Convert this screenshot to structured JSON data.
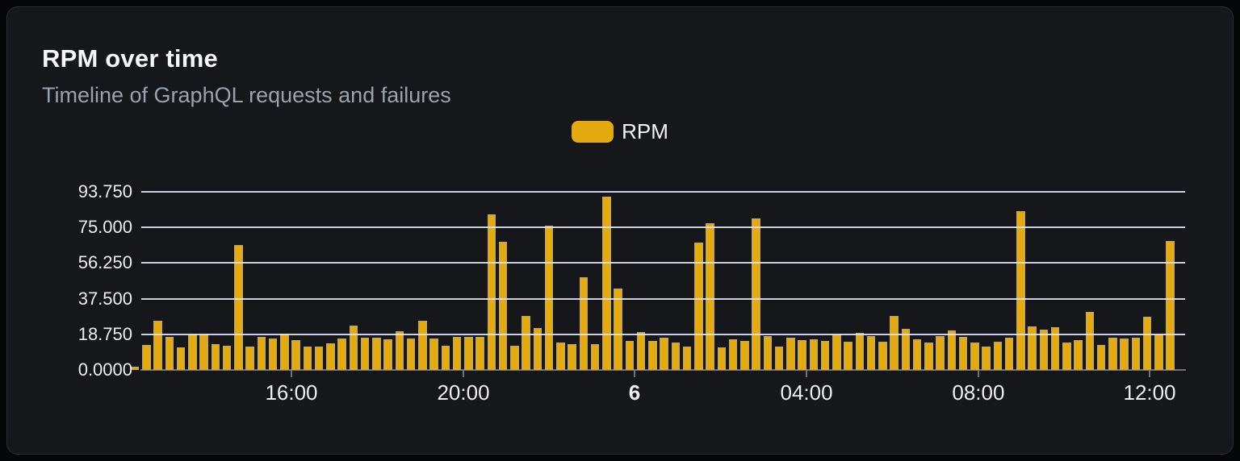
{
  "header": {
    "title": "RPM over time",
    "subtitle": "Timeline of GraphQL requests and failures"
  },
  "legend": {
    "label": "RPM"
  },
  "colors": {
    "accent_gold": "#E4AA0E",
    "card_background": "#15171B",
    "grid_line": "#DDE2EC",
    "axis_line": "#6F737B",
    "text_primary": "#F5F6F7",
    "text_secondary": "#9BA2AB"
  },
  "chart_data": {
    "type": "bar",
    "title": "RPM over time",
    "subtitle": "Timeline of GraphQL requests and failures",
    "legend_position": "top-center",
    "grid": true,
    "bar_color": "#E4AA0E",
    "y_axis": {
      "min": 0,
      "max": 93.75,
      "tick_labels": [
        "93.750",
        "75.000",
        "56.250",
        "37.500",
        "18.750",
        "0.0000"
      ]
    },
    "x_axis": {
      "ticks": [
        {
          "label": "16:00",
          "pct": 14.44,
          "bold": false
        },
        {
          "label": "20:00",
          "pct": 30.89,
          "bold": false
        },
        {
          "label": "6",
          "pct": 47.26,
          "bold": true
        },
        {
          "label": "04:00",
          "pct": 63.71,
          "bold": false
        },
        {
          "label": "08:00",
          "pct": 80.15,
          "bold": false
        },
        {
          "label": "12:00",
          "pct": 96.53,
          "bold": false
        }
      ]
    },
    "series": [
      {
        "name": "RPM",
        "values": [
          1.8,
          13.1,
          25.8,
          17.3,
          11.7,
          18.5,
          18.5,
          13.5,
          12.8,
          65.7,
          12.1,
          17.3,
          16.4,
          19.0,
          15.5,
          12.1,
          12.4,
          14.2,
          16.4,
          23.3,
          17.1,
          17.1,
          16.2,
          20.4,
          16.4,
          26.0,
          16.6,
          12.9,
          17.3,
          17.5,
          17.5,
          82.0,
          67.4,
          12.6,
          28.5,
          22.0,
          76.1,
          14.5,
          13.6,
          48.6,
          13.6,
          91.0,
          43.0,
          15.2,
          19.9,
          15.3,
          17.0,
          14.6,
          12.1,
          67.2,
          77.4,
          12.0,
          16.1,
          15.4,
          79.9,
          18.0,
          12.2,
          17.1,
          15.7,
          16.1,
          15.3,
          18.8,
          14.7,
          19.7,
          17.8,
          15.0,
          28.4,
          21.6,
          16.1,
          14.3,
          17.8,
          20.6,
          17.5,
          14.5,
          12.4,
          14.7,
          17.1,
          83.4,
          22.9,
          21.1,
          22.7,
          14.5,
          15.9,
          30.6,
          13.1,
          16.8,
          16.4,
          16.8,
          27.8,
          18.5,
          67.7
        ]
      }
    ]
  }
}
